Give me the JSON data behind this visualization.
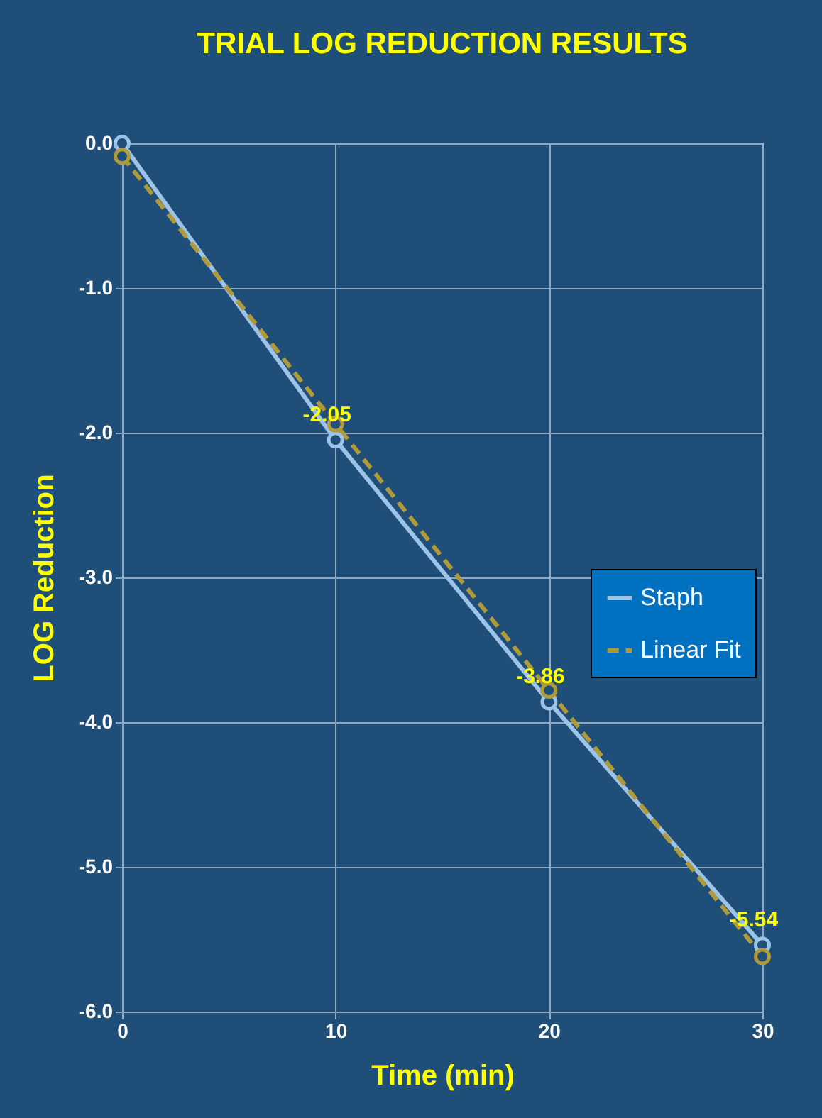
{
  "chart_data": {
    "type": "line",
    "title": "TRIAL LOG REDUCTION RESULTS",
    "xlabel": "Time (min)",
    "ylabel": "LOG Reduction",
    "x": [
      0,
      10,
      20,
      30
    ],
    "series": [
      {
        "name": "Staph",
        "color": "#9dc3e6",
        "values": [
          0.0,
          -2.05,
          -3.86,
          -5.54
        ],
        "line_style": "solid",
        "value_labels": [
          null,
          "-2.05",
          "-3.86",
          "-5.54"
        ]
      },
      {
        "name": "Linear Fit",
        "color": "#b09a3a",
        "values": [
          -0.09,
          -1.94,
          -3.78,
          -5.62
        ],
        "line_style": "dashed"
      }
    ],
    "xlim": [
      0,
      30
    ],
    "xticks": [
      0,
      10,
      20,
      30
    ],
    "ylim": [
      -6,
      0
    ],
    "yticks": [
      {
        "value": -6,
        "label": "-6.0"
      },
      {
        "value": -5,
        "label": "-5.0"
      },
      {
        "value": -4,
        "label": "-4.0"
      },
      {
        "value": -3,
        "label": "-3.0"
      },
      {
        "value": -2,
        "label": "-2.0"
      },
      {
        "value": -1,
        "label": "-1.0"
      },
      {
        "value": 0,
        "label": "0.0"
      }
    ],
    "grid": true,
    "legend": "right",
    "marker": "circle"
  }
}
